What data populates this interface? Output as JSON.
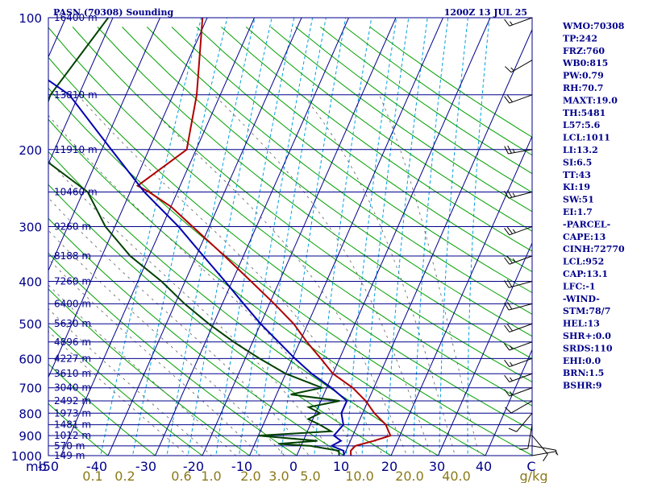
{
  "header": {
    "title": "PASN (70308) Sounding",
    "time": "1200Z 13 JUL 25"
  },
  "indices": [
    "WMO:70308",
    "TP:242",
    "FRZ:760",
    "WB0:815",
    "PW:0.79",
    "RH:70.7",
    "MAXT:19.0",
    "TH:5481",
    "L57:5.6",
    "LCL:1011",
    "LI:13.2",
    "SI:6.5",
    "TT:43",
    "KI:19",
    "SW:51",
    "EI:1.7",
    "-PARCEL-",
    "CAPE:13",
    "CINH:72770",
    "LCL:952",
    "CAP:13.1",
    "LFC:-1",
    "-WIND-",
    "STM:78/7",
    "HEL:13",
    "SHR+:0.0",
    "SRDS:110",
    "EHI:0.0",
    "BRN:1.5",
    "BSHR:9"
  ],
  "colors": {
    "frame": "#00008b",
    "isotherm": "#00008b",
    "dry_adiabat": "#00a000",
    "moist_adiabat": "#606060",
    "mixing_ratio": "#00a0e0",
    "temperature": "#b00000",
    "dewpoint": "#004000",
    "wetbulb": "#0000b0"
  },
  "chart_data": {
    "type": "skew-t log-p sounding",
    "title": "PASN (70308) Sounding",
    "time": "1200Z 13 JUL 25",
    "pressure_unit": "mb",
    "temperature_unit": "C",
    "mixing_ratio_unit": "g/kg",
    "pressure_range": [
      1000,
      100
    ],
    "temperature_ticks": [
      -50,
      -40,
      -30,
      -20,
      -10,
      0,
      10,
      20,
      30,
      40
    ],
    "temperature_tick_labels": [
      "-50",
      "-40",
      "-30",
      "-20",
      "-10",
      "0",
      "10",
      "20",
      "30",
      "40"
    ],
    "pressure_ticks": [
      100,
      200,
      300,
      400,
      500,
      600,
      700,
      800,
      900,
      1000
    ],
    "mixing_ratio_labels": [
      "0.1",
      "0.2",
      "0.6",
      "1.0",
      "2.0",
      "3.0",
      "5.0",
      "10.0",
      "20.0",
      "40.0"
    ],
    "height_labels": [
      {
        "p": 100,
        "label": "16400 m"
      },
      {
        "p": 150,
        "label": "13810 m"
      },
      {
        "p": 200,
        "label": "11910 m"
      },
      {
        "p": 250,
        "label": "10460 m"
      },
      {
        "p": 300,
        "label": "9260 m"
      },
      {
        "p": 350,
        "label": "8188 m"
      },
      {
        "p": 400,
        "label": "7260 m"
      },
      {
        "p": 450,
        "label": "6400 m"
      },
      {
        "p": 500,
        "label": "5630 m"
      },
      {
        "p": 550,
        "label": "4896 m"
      },
      {
        "p": 600,
        "label": "4227 m"
      },
      {
        "p": 650,
        "label": "3610 m"
      },
      {
        "p": 700,
        "label": "3040 m"
      },
      {
        "p": 750,
        "label": "2492 m"
      },
      {
        "p": 800,
        "label": "1973 m"
      },
      {
        "p": 850,
        "label": "1481 m"
      },
      {
        "p": 900,
        "label": "1012 m"
      },
      {
        "p": 950,
        "label": "570 m"
      },
      {
        "p": 1000,
        "label": "149 m"
      }
    ],
    "series": [
      {
        "key": "temperature",
        "points": [
          {
            "p": 1000,
            "t": 11.5
          },
          {
            "p": 975,
            "t": 11.0
          },
          {
            "p": 950,
            "t": 11.5
          },
          {
            "p": 925,
            "t": 15.0
          },
          {
            "p": 900,
            "t": 18.0
          },
          {
            "p": 875,
            "t": 17.0
          },
          {
            "p": 850,
            "t": 16.0
          },
          {
            "p": 800,
            "t": 12.5
          },
          {
            "p": 750,
            "t": 9.5
          },
          {
            "p": 700,
            "t": 5.5
          },
          {
            "p": 650,
            "t": 0.0
          },
          {
            "p": 600,
            "t": -4.0
          },
          {
            "p": 550,
            "t": -8.5
          },
          {
            "p": 500,
            "t": -13.0
          },
          {
            "p": 450,
            "t": -19.0
          },
          {
            "p": 400,
            "t": -26.0
          },
          {
            "p": 350,
            "t": -34.0
          },
          {
            "p": 300,
            "t": -43.5
          },
          {
            "p": 270,
            "t": -50.0
          },
          {
            "p": 250,
            "t": -56.0
          },
          {
            "p": 242,
            "t": -59.0
          },
          {
            "p": 200,
            "t": -52.0
          },
          {
            "p": 150,
            "t": -55.0
          },
          {
            "p": 100,
            "t": -61.0
          }
        ]
      },
      {
        "key": "dewpoint",
        "points": [
          {
            "p": 1000,
            "t": 9.0
          },
          {
            "p": 975,
            "t": 8.5
          },
          {
            "p": 950,
            "t": 2.0
          },
          {
            "p": 940,
            "t": -5.0
          },
          {
            "p": 925,
            "t": 3.0
          },
          {
            "p": 900,
            "t": -10.0
          },
          {
            "p": 880,
            "t": 5.0
          },
          {
            "p": 850,
            "t": 2.0
          },
          {
            "p": 825,
            "t": -1.0
          },
          {
            "p": 800,
            "t": 1.0
          },
          {
            "p": 775,
            "t": -2.0
          },
          {
            "p": 750,
            "t": 4.0
          },
          {
            "p": 725,
            "t": -7.0
          },
          {
            "p": 700,
            "t": -1.0
          },
          {
            "p": 650,
            "t": -10.0
          },
          {
            "p": 600,
            "t": -17.0
          },
          {
            "p": 550,
            "t": -24.0
          },
          {
            "p": 500,
            "t": -31.0
          },
          {
            "p": 450,
            "t": -38.0
          },
          {
            "p": 400,
            "t": -45.0
          },
          {
            "p": 350,
            "t": -54.0
          },
          {
            "p": 300,
            "t": -62.0
          },
          {
            "p": 250,
            "t": -69.0
          },
          {
            "p": 200,
            "t": -85.0
          },
          {
            "p": 150,
            "t": -86.0
          },
          {
            "p": 100,
            "t": -81.0
          }
        ]
      },
      {
        "key": "wetbulb",
        "points": [
          {
            "p": 1000,
            "t": 10.0
          },
          {
            "p": 975,
            "t": 9.5
          },
          {
            "p": 950,
            "t": 6.5
          },
          {
            "p": 925,
            "t": 8.0
          },
          {
            "p": 900,
            "t": 6.0
          },
          {
            "p": 850,
            "t": 7.0
          },
          {
            "p": 800,
            "t": 5.5
          },
          {
            "p": 750,
            "t": 5.5
          },
          {
            "p": 700,
            "t": 1.0
          },
          {
            "p": 650,
            "t": -4.5
          },
          {
            "p": 600,
            "t": -9.5
          },
          {
            "p": 550,
            "t": -14.5
          },
          {
            "p": 500,
            "t": -20.0
          },
          {
            "p": 450,
            "t": -25.5
          },
          {
            "p": 400,
            "t": -31.5
          },
          {
            "p": 350,
            "t": -38.5
          },
          {
            "p": 300,
            "t": -46.5
          },
          {
            "p": 250,
            "t": -57.0
          },
          {
            "p": 200,
            "t": -68.0
          },
          {
            "p": 150,
            "t": -82.0
          },
          {
            "p": 135,
            "t": -90.0
          }
        ]
      }
    ],
    "wind_barbs": [
      {
        "p": 1000,
        "dir": 80,
        "spd": 5
      },
      {
        "p": 950,
        "dir": 100,
        "spd": 5
      },
      {
        "p": 900,
        "dir": 140,
        "spd": 10
      },
      {
        "p": 850,
        "dir": 190,
        "spd": 10
      },
      {
        "p": 800,
        "dir": 220,
        "spd": 10
      },
      {
        "p": 750,
        "dir": 240,
        "spd": 10
      },
      {
        "p": 700,
        "dir": 250,
        "spd": 15
      },
      {
        "p": 650,
        "dir": 250,
        "spd": 15
      },
      {
        "p": 600,
        "dir": 250,
        "spd": 15
      },
      {
        "p": 550,
        "dir": 250,
        "spd": 15
      },
      {
        "p": 500,
        "dir": 250,
        "spd": 20
      },
      {
        "p": 450,
        "dir": 255,
        "spd": 20
      },
      {
        "p": 400,
        "dir": 255,
        "spd": 20
      },
      {
        "p": 350,
        "dir": 250,
        "spd": 25
      },
      {
        "p": 300,
        "dir": 250,
        "spd": 25
      },
      {
        "p": 250,
        "dir": 255,
        "spd": 25
      },
      {
        "p": 200,
        "dir": 260,
        "spd": 25
      },
      {
        "p": 150,
        "dir": 250,
        "spd": 20
      },
      {
        "p": 125,
        "dir": 240,
        "spd": 15
      },
      {
        "p": 100,
        "dir": 250,
        "spd": 15
      }
    ]
  }
}
